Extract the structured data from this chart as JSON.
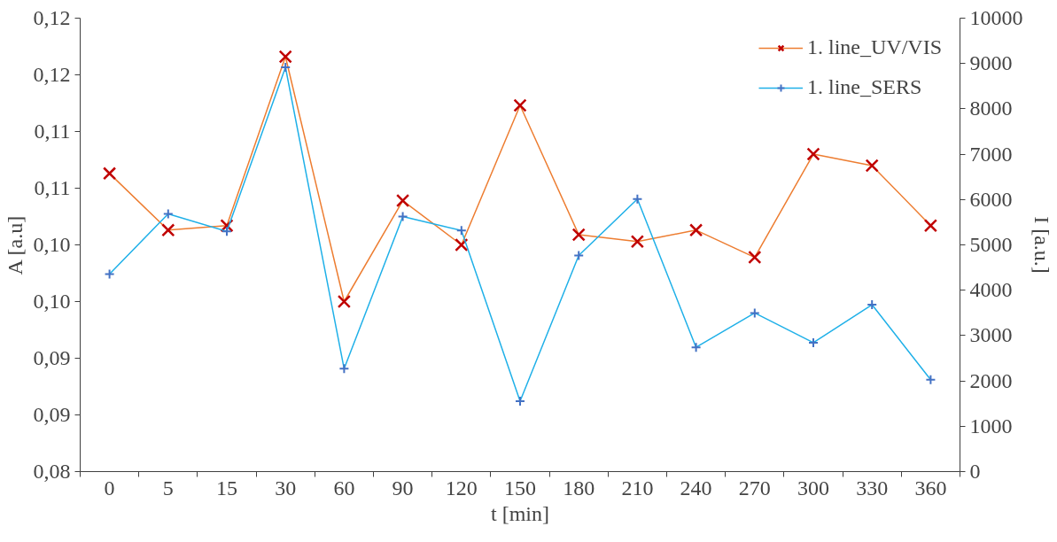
{
  "chart_data": {
    "type": "line",
    "xlabel": "t [min]",
    "ylabel": "A [a.u]",
    "y2label": "I [a.u.]",
    "categories": [
      "0",
      "5",
      "15",
      "30",
      "60",
      "90",
      "120",
      "150",
      "180",
      "210",
      "240",
      "270",
      "300",
      "330",
      "360"
    ],
    "series": [
      {
        "name": "1. line_UV/VIS",
        "color": "#ed7d31",
        "marker": "x",
        "values": [
          0.1063,
          0.1013,
          0.1017,
          0.1166,
          0.095,
          0.1039,
          0.1,
          0.1123,
          0.1009,
          0.1003,
          0.1013,
          0.0989,
          0.108,
          0.107,
          0.1017
        ]
      },
      {
        "name": "1. line_SERS",
        "color": "#1fb0e8",
        "marker": "cross",
        "axis": "y2",
        "values": [
          4356,
          5685,
          5297,
          8916,
          2270,
          5624,
          5317,
          1554,
          4765,
          6012,
          2740,
          3497,
          2843,
          3681,
          2025
        ]
      }
    ],
    "ylim": [
      0.08,
      0.12
    ],
    "yticks": [
      {
        "value": 0.08,
        "label": "0,08"
      },
      {
        "value": 0.085,
        "label": "0,09"
      },
      {
        "value": 0.09,
        "label": "0,09"
      },
      {
        "value": 0.095,
        "label": "0,10"
      },
      {
        "value": 0.1,
        "label": "0,10"
      },
      {
        "value": 0.105,
        "label": "0,11"
      },
      {
        "value": 0.11,
        "label": "0,11"
      },
      {
        "value": 0.115,
        "label": "0,12"
      },
      {
        "value": 0.12,
        "label": "0,12"
      }
    ],
    "y2lim": [
      0,
      10000
    ],
    "y2ticks": [
      0,
      1000,
      2000,
      3000,
      4000,
      5000,
      6000,
      7000,
      8000,
      9000,
      10000
    ],
    "legend": "top right",
    "grid": false
  }
}
